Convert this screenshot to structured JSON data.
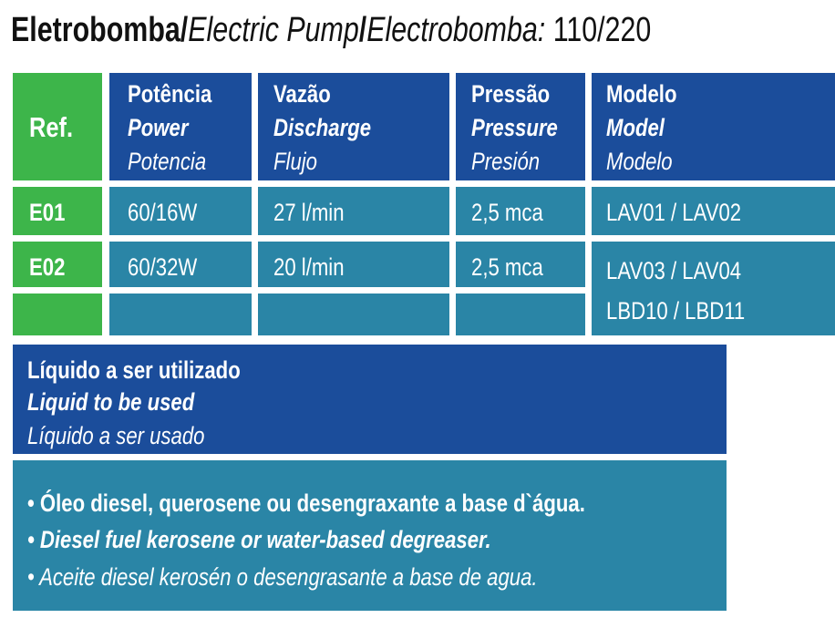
{
  "title": [
    "Eletrobomba/",
    "Electric Pump",
    "/",
    "Electrobomba:",
    "110/220"
  ],
  "table": {
    "header": [
      [
        "Ref."
      ],
      [
        "Potência",
        "Power",
        "Potencia"
      ],
      [
        "Vazão",
        "Discharge",
        "Flujo"
      ],
      [
        "Pressão",
        "Pressure",
        "Presión"
      ],
      [
        "Modelo",
        "Model",
        "Modelo"
      ]
    ],
    "rows": [
      [
        "E01",
        "60/16W",
        "27 l/min",
        "2,5 mca",
        [
          "LAV01 / LAV02"
        ]
      ],
      [
        "E02",
        "60/32W",
        "20 l/min",
        "2,5 mca",
        [
          "LAV03 / LAV04",
          "LBD10 / LBD11"
        ]
      ]
    ]
  },
  "liquid": {
    "heading": [
      "Líquido a ser utilizado",
      "Liquid to be used",
      "Líquido a ser usado"
    ],
    "items": [
      "• Óleo diesel, querosene ou desengraxante a base d`água.",
      "• Diesel fuel kerosene or water-based degreaser.",
      "• Aceite diesel kerosén o desengrasante a base de agua."
    ]
  }
}
